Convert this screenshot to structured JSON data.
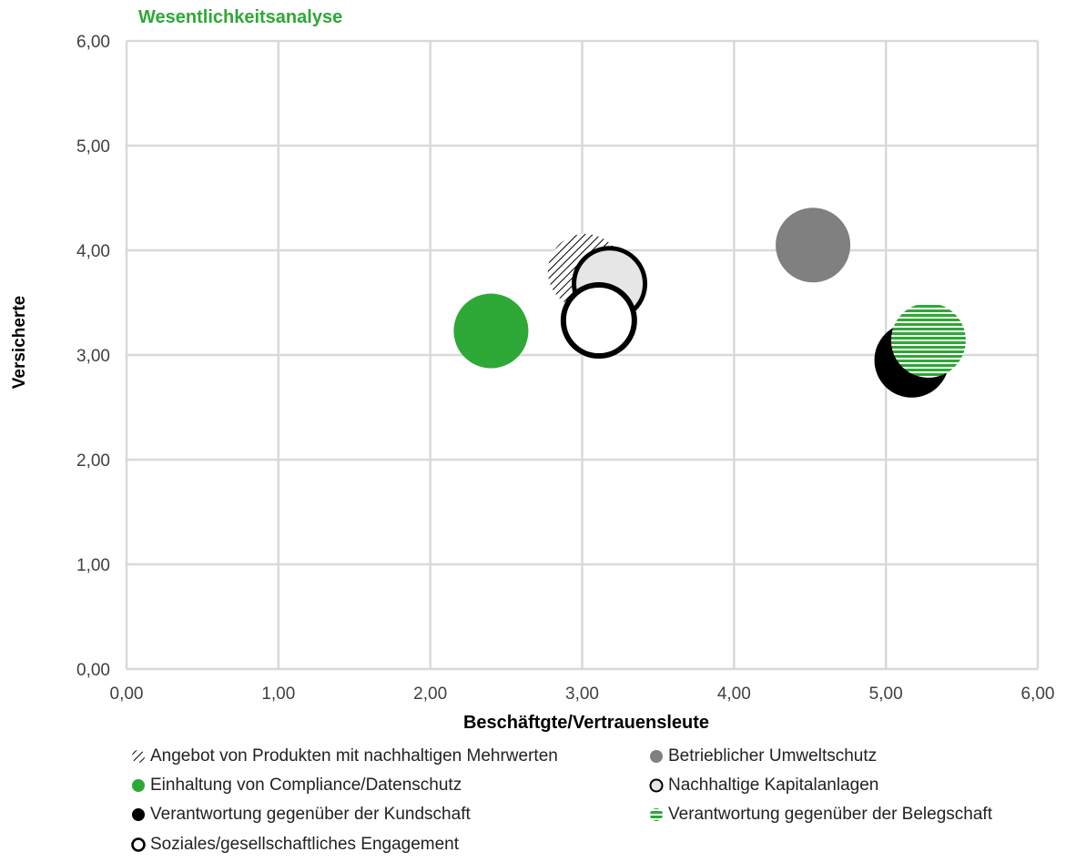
{
  "chart_data": {
    "type": "bubble",
    "title": "Wesentlichkeitsanalyse",
    "xlabel": "Beschäftgte/Vertrauensleute",
    "ylabel": "Versicherte",
    "xlim": [
      0,
      6
    ],
    "ylim": [
      0,
      6
    ],
    "x_ticks": [
      "0,00",
      "1,00",
      "2,00",
      "3,00",
      "4,00",
      "5,00",
      "6,00"
    ],
    "y_ticks": [
      "0,00",
      "1,00",
      "2,00",
      "3,00",
      "4,00",
      "5,00",
      "6,00"
    ],
    "grid": true,
    "legend_position": "bottom",
    "series": [
      {
        "name": "Angebot von Produkten mit nachhaltigen Mehrwerten",
        "x": 3.02,
        "y": 3.8,
        "style": "diagonal-hatch",
        "color": "#000000"
      },
      {
        "name": "Betrieblicher Umweltschutz",
        "x": 4.52,
        "y": 4.05,
        "style": "solid",
        "color": "#808080"
      },
      {
        "name": "Einhaltung von Compliance/Datenschutz",
        "x": 2.4,
        "y": 3.23,
        "style": "solid",
        "color": "#2ea836"
      },
      {
        "name": "Nachhaltige Kapitalanlagen",
        "x": 3.18,
        "y": 3.68,
        "style": "outline-light",
        "color": "#e6e6e6"
      },
      {
        "name": "Verantwortung gegenüber der Kundschaft",
        "x": 5.17,
        "y": 2.95,
        "style": "solid",
        "color": "#000000"
      },
      {
        "name": "Verantwortung gegenüber der Belegschaft",
        "x": 5.28,
        "y": 3.14,
        "style": "horizontal-stripes",
        "color": "#2ea836"
      },
      {
        "name": "Soziales/gesellschaftliches Engagement",
        "x": 3.11,
        "y": 3.33,
        "style": "outline",
        "color": "#ffffff"
      }
    ]
  },
  "colors": {
    "title": "#2ea836",
    "grid": "#d9d9d9",
    "axis_text": "#404040"
  }
}
